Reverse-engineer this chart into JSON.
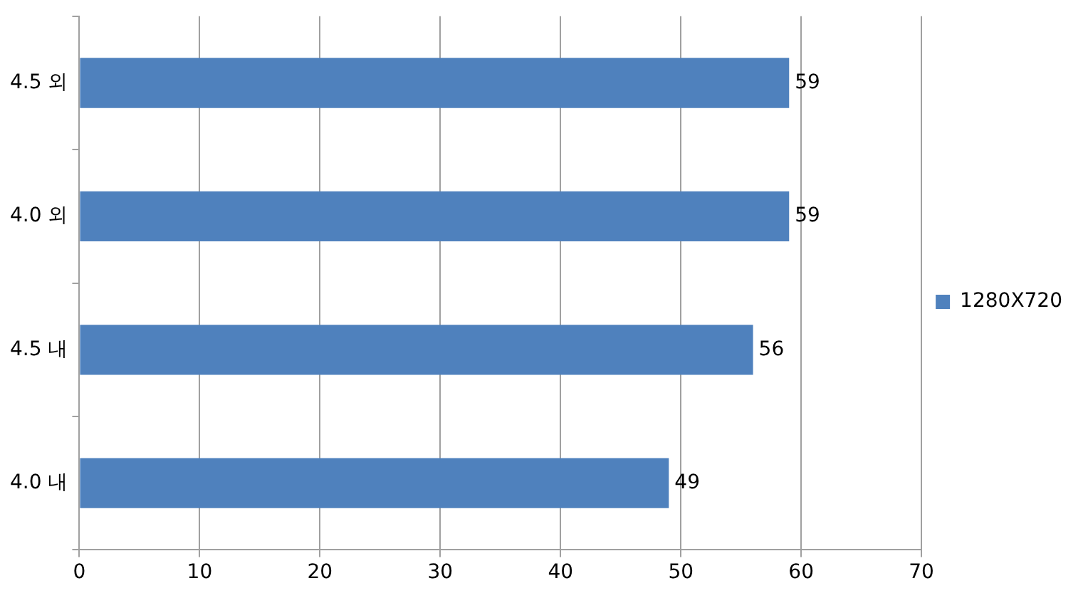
{
  "chart_data": {
    "type": "bar",
    "orientation": "horizontal",
    "categories": [
      "4.5 외",
      "4.0 외",
      "4.5 내",
      "4.0 내"
    ],
    "series": [
      {
        "name": "1280X720",
        "color": "#4f81bd",
        "values": [
          59,
          59,
          56,
          49
        ]
      }
    ],
    "xlim": [
      0,
      70
    ],
    "xticks": [
      0,
      10,
      20,
      30,
      40,
      50,
      60,
      70
    ],
    "grid": "x",
    "legend": "right",
    "data_labels": true
  }
}
